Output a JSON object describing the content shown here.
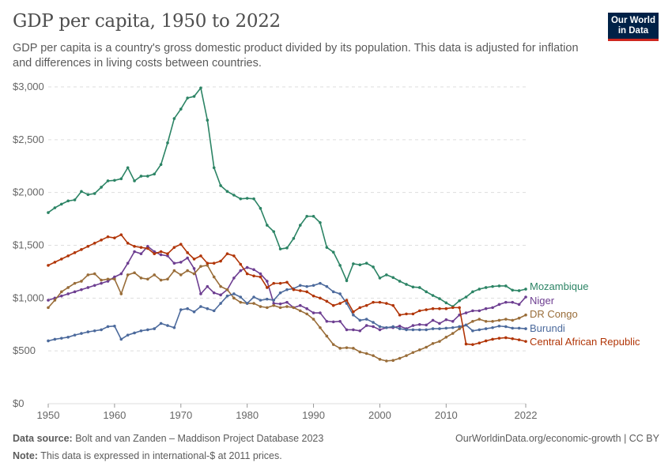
{
  "header": {
    "title": "GDP per capita, 1950 to 2022",
    "subtitle": "GDP per capita is a country's gross domestic product divided by its population. This data is adjusted for inflation and differences in living costs between countries.",
    "logo": "Our World in Data"
  },
  "footer": {
    "source_label": "Data source:",
    "source": "Bolt and van Zanden – Maddison Project Database 2023",
    "url": "OurWorldinData.org/economic-growth | CC BY",
    "note_label": "Note:",
    "note": "This data is expressed in international-$ at 2011 prices."
  },
  "chart_data": {
    "type": "line",
    "title": "GDP per capita, 1950 to 2022",
    "xlim": [
      1950,
      2022
    ],
    "ylim": [
      0,
      3000
    ],
    "x_ticks": [
      1950,
      1960,
      1970,
      1980,
      1990,
      2000,
      2010,
      2022
    ],
    "y_ticks": [
      0,
      500,
      1000,
      1500,
      2000,
      2500,
      3000
    ],
    "y_tick_labels": [
      "$0",
      "$500",
      "$1,000",
      "$1,500",
      "$2,000",
      "$2,500",
      "$3,000"
    ],
    "grid": "horizontal dashed",
    "legend": "right, inline labels",
    "x_start": 1950,
    "series": [
      {
        "name": "Mozambique",
        "color": "#2c8465",
        "values": [
          1810,
          1855,
          1890,
          1920,
          1930,
          2010,
          1980,
          1990,
          2050,
          2110,
          2115,
          2130,
          2235,
          2110,
          2155,
          2155,
          2175,
          2265,
          2470,
          2700,
          2790,
          2895,
          2910,
          2990,
          2685,
          2235,
          2065,
          2010,
          1975,
          1940,
          1945,
          1940,
          1850,
          1690,
          1630,
          1465,
          1475,
          1565,
          1690,
          1775,
          1775,
          1715,
          1480,
          1435,
          1310,
          1165,
          1325,
          1315,
          1330,
          1295,
          1190,
          1220,
          1195,
          1160,
          1130,
          1105,
          1100,
          1060,
          1025,
          995,
          955,
          920,
          975,
          1010,
          1060,
          1085,
          1100,
          1110,
          1115,
          1115,
          1075,
          1070,
          1085
        ]
      },
      {
        "name": "Niger",
        "color": "#6d3e91",
        "values": [
          980,
          1000,
          1020,
          1040,
          1060,
          1080,
          1100,
          1120,
          1140,
          1160,
          1200,
          1230,
          1330,
          1440,
          1420,
          1490,
          1440,
          1410,
          1400,
          1330,
          1340,
          1380,
          1280,
          1040,
          1110,
          1050,
          1030,
          1080,
          1190,
          1260,
          1290,
          1270,
          1230,
          1160,
          950,
          945,
          960,
          910,
          930,
          900,
          860,
          860,
          780,
          775,
          780,
          700,
          700,
          690,
          740,
          730,
          700,
          720,
          720,
          735,
          710,
          740,
          750,
          745,
          790,
          760,
          795,
          780,
          840,
          860,
          880,
          880,
          900,
          910,
          940,
          960,
          960,
          940,
          1010
        ]
      },
      {
        "name": "DR Congo",
        "color": "#996d39",
        "values": [
          910,
          980,
          1060,
          1100,
          1140,
          1160,
          1220,
          1230,
          1170,
          1180,
          1180,
          1040,
          1220,
          1240,
          1190,
          1180,
          1220,
          1170,
          1180,
          1260,
          1220,
          1260,
          1230,
          1300,
          1310,
          1200,
          1110,
          1080,
          1000,
          960,
          950,
          950,
          920,
          910,
          930,
          910,
          920,
          910,
          880,
          850,
          800,
          720,
          640,
          560,
          525,
          530,
          525,
          490,
          475,
          455,
          420,
          405,
          410,
          430,
          455,
          485,
          510,
          535,
          570,
          590,
          630,
          665,
          710,
          745,
          780,
          800,
          780,
          780,
          790,
          800,
          790,
          810,
          840
        ]
      },
      {
        "name": "Burundi",
        "color": "#4c6a9c",
        "values": [
          595,
          610,
          620,
          630,
          650,
          665,
          680,
          690,
          700,
          730,
          735,
          610,
          650,
          670,
          690,
          700,
          710,
          760,
          740,
          720,
          890,
          900,
          870,
          920,
          900,
          880,
          950,
          1020,
          1040,
          1010,
          950,
          1010,
          980,
          990,
          980,
          1050,
          1080,
          1090,
          1120,
          1110,
          1120,
          1140,
          1110,
          1060,
          1040,
          950,
          840,
          790,
          800,
          770,
          730,
          720,
          730,
          710,
          700,
          700,
          700,
          700,
          710,
          710,
          715,
          720,
          730,
          745,
          690,
          700,
          710,
          720,
          735,
          730,
          715,
          715,
          710
        ]
      },
      {
        "name": "Central African Republic",
        "color": "#b13507",
        "values": [
          1310,
          1340,
          1370,
          1400,
          1430,
          1460,
          1490,
          1520,
          1550,
          1580,
          1570,
          1600,
          1520,
          1490,
          1480,
          1470,
          1420,
          1440,
          1420,
          1480,
          1510,
          1430,
          1370,
          1400,
          1330,
          1330,
          1350,
          1420,
          1400,
          1320,
          1230,
          1210,
          1200,
          1100,
          1140,
          1140,
          1150,
          1080,
          1070,
          1060,
          1020,
          1000,
          970,
          930,
          950,
          980,
          870,
          910,
          930,
          960,
          960,
          950,
          930,
          840,
          850,
          850,
          880,
          890,
          900,
          900,
          900,
          910,
          910,
          565,
          560,
          575,
          595,
          610,
          620,
          625,
          615,
          605,
          590
        ]
      }
    ]
  }
}
